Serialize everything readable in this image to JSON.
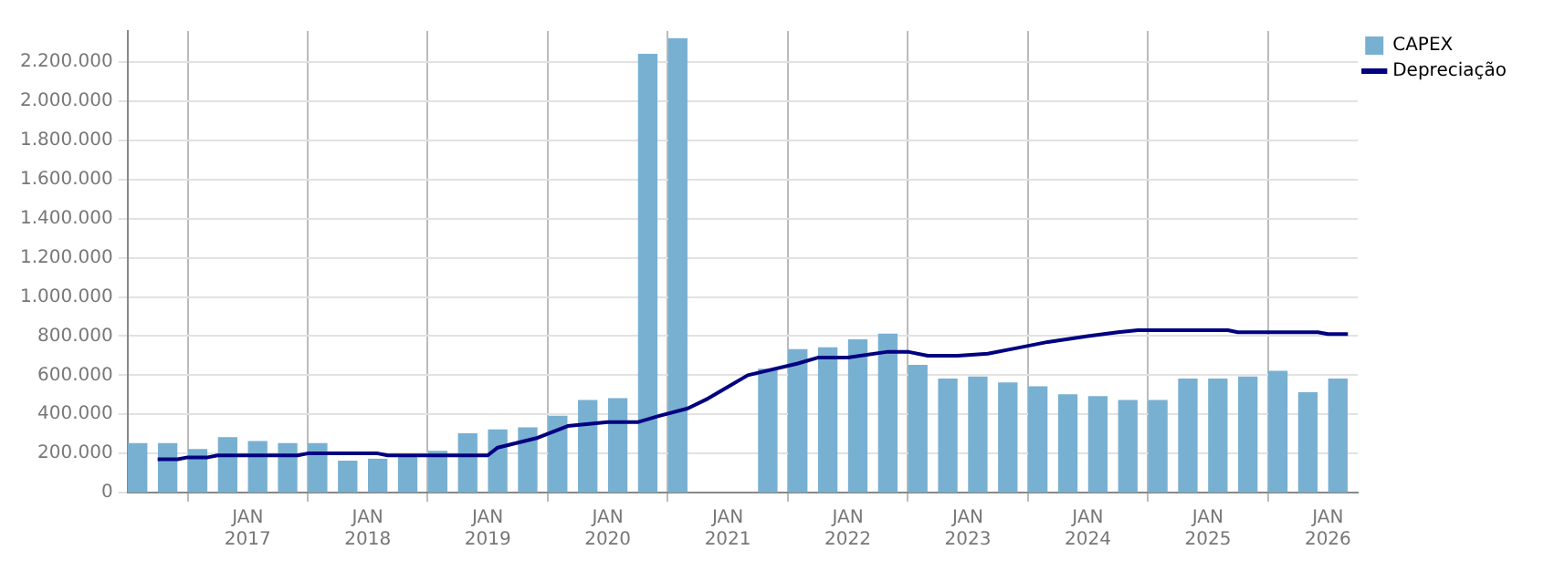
{
  "chart_data": {
    "type": "bar",
    "x": [
      "2016-02",
      "2016-05",
      "2016-08",
      "2016-11",
      "2017-02",
      "2017-05",
      "2017-08",
      "2017-11",
      "2018-02",
      "2018-05",
      "2018-08",
      "2018-11",
      "2019-02",
      "2019-05",
      "2019-08",
      "2019-11",
      "2020-02",
      "2020-05",
      "2020-08",
      "2020-11",
      "2021-02",
      "2021-05",
      "2021-08",
      "2021-11",
      "2022-02",
      "2022-05",
      "2022-08",
      "2022-11",
      "2023-02",
      "2023-05",
      "2023-08",
      "2023-11",
      "2024-02",
      "2024-05",
      "2024-08",
      "2024-11",
      "2025-02",
      "2025-05",
      "2025-08",
      "2025-11",
      "2026-02"
    ],
    "series": [
      {
        "name": "CAPEX",
        "color": "#78b0d2",
        "values": [
          250000,
          250000,
          220000,
          280000,
          260000,
          250000,
          250000,
          160000,
          170000,
          190000,
          210000,
          300000,
          320000,
          330000,
          390000,
          470000,
          480000,
          2240000,
          2320000,
          null,
          null,
          630000,
          730000,
          740000,
          780000,
          810000,
          650000,
          580000,
          590000,
          560000,
          540000,
          500000,
          490000,
          470000,
          470000,
          580000,
          580000,
          590000,
          620000,
          510000,
          580000
        ]
      },
      {
        "name": "Depreciação",
        "type": "line",
        "color": "#000080",
        "x": [
          "2016-04",
          "2016-06",
          "2016-07",
          "2016-09",
          "2016-10",
          "2017-06",
          "2017-07",
          "2018-02",
          "2018-03",
          "2019-01",
          "2019-02",
          "2019-06",
          "2019-09",
          "2020-01",
          "2020-04",
          "2020-06",
          "2020-09",
          "2020-11",
          "2021-01",
          "2021-03",
          "2021-08",
          "2021-10",
          "2022-01",
          "2022-05",
          "2022-07",
          "2022-09",
          "2022-12",
          "2023-03",
          "2023-06",
          "2023-09",
          "2024-01",
          "2024-04",
          "2024-06",
          "2025-03",
          "2025-04",
          "2025-12",
          "2026-01",
          "2026-03"
        ],
        "values": [
          170000,
          170000,
          180000,
          180000,
          190000,
          190000,
          200000,
          200000,
          190000,
          190000,
          230000,
          280000,
          340000,
          360000,
          360000,
          390000,
          430000,
          480000,
          540000,
          600000,
          660000,
          690000,
          690000,
          720000,
          720000,
          700000,
          700000,
          710000,
          740000,
          770000,
          800000,
          820000,
          830000,
          830000,
          820000,
          820000,
          810000,
          810000
        ]
      }
    ],
    "xlim": [
      "2016-01",
      "2026-04"
    ],
    "xticks": [
      {
        "value": "2017-01",
        "label": "JAN\n2017"
      },
      {
        "value": "2018-01",
        "label": "JAN\n2018"
      },
      {
        "value": "2019-01",
        "label": "JAN\n2019"
      },
      {
        "value": "2020-01",
        "label": "JAN\n2020"
      },
      {
        "value": "2021-01",
        "label": "JAN\n2021"
      },
      {
        "value": "2022-01",
        "label": "JAN\n2022"
      },
      {
        "value": "2023-01",
        "label": "JAN\n2023"
      },
      {
        "value": "2024-01",
        "label": "JAN\n2024"
      },
      {
        "value": "2025-01",
        "label": "JAN\n2025"
      },
      {
        "value": "2026-01",
        "label": "JAN\n2026"
      }
    ],
    "ylim": [
      0,
      2360000
    ],
    "yticks": [
      0,
      {
        "value": 200000,
        "label": "200.000"
      },
      {
        "value": 400000,
        "label": "400.000"
      },
      {
        "value": 600000,
        "label": "600.000"
      },
      {
        "value": 800000,
        "label": "800.000"
      },
      {
        "value": 1000000,
        "label": "1.000.000"
      },
      {
        "value": 1200000,
        "label": "1.200.000"
      },
      {
        "value": 1400000,
        "label": "1.400.000"
      },
      {
        "value": 1600000,
        "label": "1.600.000"
      },
      {
        "value": 1800000,
        "label": "1.800.000"
      },
      {
        "value": 2000000,
        "label": "2.000.000"
      },
      {
        "value": 2200000,
        "label": "2.200.000"
      }
    ],
    "grid": true,
    "legend": "top right",
    "marker": "none"
  }
}
